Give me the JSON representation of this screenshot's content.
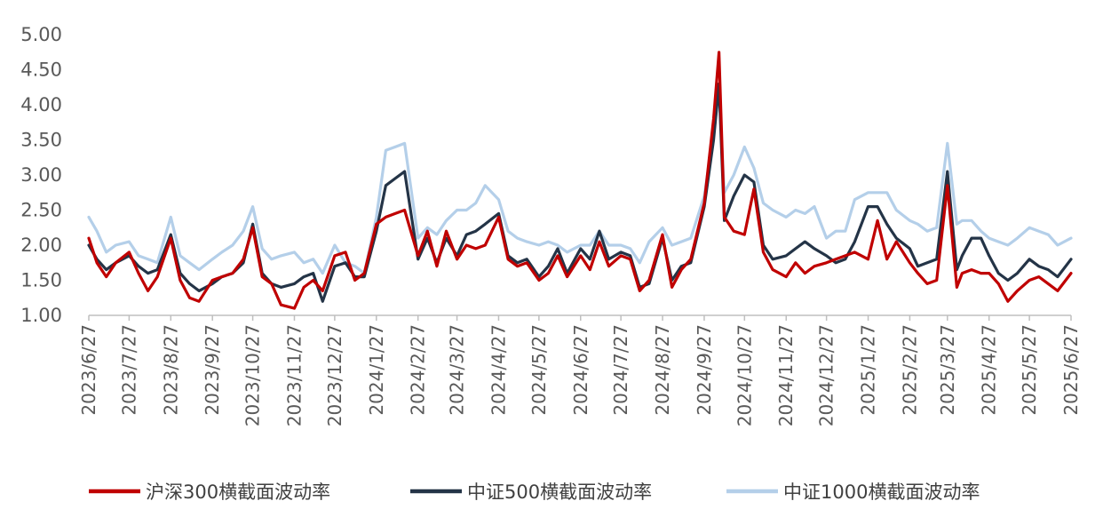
{
  "chart_data": {
    "type": "line",
    "title": "",
    "xlabel": "",
    "ylabel": "",
    "ylim": [
      1.0,
      5.0
    ],
    "y_ticks": [
      "1.00",
      "1.50",
      "2.00",
      "2.50",
      "3.00",
      "3.50",
      "4.00",
      "4.50",
      "5.00"
    ],
    "x_ticks": [
      "2023/6/27",
      "2023/7/27",
      "2023/8/27",
      "2023/9/27",
      "2023/10/27",
      "2023/11/27",
      "2023/12/27",
      "2024/1/27",
      "2024/2/27",
      "2024/3/27",
      "2024/4/27",
      "2024/5/27",
      "2024/6/27",
      "2024/7/27",
      "2024/8/27",
      "2024/9/27",
      "2024/10/27",
      "2024/11/27",
      "2024/12/27",
      "2025/1/27",
      "2025/2/27",
      "2025/3/27",
      "2025/4/27",
      "2025/5/27",
      "2025/6/27"
    ],
    "grid": false,
    "legend_position": "bottom",
    "series": [
      {
        "name": "沪深300横截面波动率",
        "color": "#c00000",
        "x": [
          "2023/6/27",
          "2023/7/3",
          "2023/7/10",
          "2023/7/17",
          "2023/7/27",
          "2023/8/3",
          "2023/8/10",
          "2023/8/17",
          "2023/8/27",
          "2023/9/3",
          "2023/9/10",
          "2023/9/17",
          "2023/9/27",
          "2023/10/4",
          "2023/10/12",
          "2023/10/20",
          "2023/10/27",
          "2023/11/3",
          "2023/11/10",
          "2023/11/17",
          "2023/11/27",
          "2023/12/4",
          "2023/12/11",
          "2023/12/18",
          "2023/12/27",
          "2024/1/4",
          "2024/1/11",
          "2024/1/18",
          "2024/1/27",
          "2024/2/3",
          "2024/2/10",
          "2024/2/17",
          "2024/2/27",
          "2024/3/5",
          "2024/3/12",
          "2024/3/19",
          "2024/3/27",
          "2024/4/3",
          "2024/4/10",
          "2024/4/17",
          "2024/4/27",
          "2024/5/4",
          "2024/5/11",
          "2024/5/18",
          "2024/5/27",
          "2024/6/3",
          "2024/6/10",
          "2024/6/17",
          "2024/6/27",
          "2024/7/4",
          "2024/7/11",
          "2024/7/18",
          "2024/7/27",
          "2024/8/3",
          "2024/8/10",
          "2024/8/17",
          "2024/8/27",
          "2024/9/3",
          "2024/9/10",
          "2024/9/17",
          "2024/9/27",
          "2024/10/4",
          "2024/10/8",
          "2024/10/12",
          "2024/10/19",
          "2024/10/27",
          "2024/11/3",
          "2024/11/10",
          "2024/11/17",
          "2024/11/27",
          "2024/12/4",
          "2024/12/11",
          "2024/12/18",
          "2024/12/27",
          "2025/1/3",
          "2025/1/10",
          "2025/1/17",
          "2025/1/27",
          "2025/2/3",
          "2025/2/10",
          "2025/2/17",
          "2025/2/27",
          "2025/3/5",
          "2025/3/12",
          "2025/3/19",
          "2025/3/27",
          "2025/4/3",
          "2025/4/7",
          "2025/4/14",
          "2025/4/21",
          "2025/4/27",
          "2025/5/4",
          "2025/5/11",
          "2025/5/18",
          "2025/5/27",
          "2025/6/3",
          "2025/6/10",
          "2025/6/17",
          "2025/6/27"
        ],
        "values": [
          2.1,
          1.75,
          1.55,
          1.75,
          1.9,
          1.6,
          1.35,
          1.55,
          2.1,
          1.5,
          1.25,
          1.2,
          1.5,
          1.55,
          1.6,
          1.8,
          2.25,
          1.55,
          1.45,
          1.15,
          1.1,
          1.4,
          1.5,
          1.35,
          1.85,
          1.9,
          1.5,
          1.6,
          2.3,
          2.4,
          2.45,
          2.5,
          1.85,
          2.2,
          1.7,
          2.2,
          1.8,
          2.0,
          1.95,
          2.0,
          2.4,
          1.8,
          1.7,
          1.75,
          1.5,
          1.6,
          1.85,
          1.55,
          1.85,
          1.65,
          2.05,
          1.7,
          1.85,
          1.8,
          1.35,
          1.5,
          2.15,
          1.4,
          1.65,
          1.8,
          2.6,
          3.8,
          4.75,
          2.4,
          2.2,
          2.15,
          2.8,
          1.9,
          1.65,
          1.55,
          1.75,
          1.6,
          1.7,
          1.75,
          1.8,
          1.85,
          1.9,
          1.8,
          2.35,
          1.8,
          2.05,
          1.75,
          1.6,
          1.45,
          1.5,
          2.85,
          1.4,
          1.6,
          1.65,
          1.6,
          1.6,
          1.45,
          1.2,
          1.35,
          1.5,
          1.55,
          1.45,
          1.35,
          1.6
        ]
      },
      {
        "name": "中证500横截面波动率",
        "color": "#243447",
        "x": [
          "2023/6/27",
          "2023/7/3",
          "2023/7/10",
          "2023/7/17",
          "2023/7/27",
          "2023/8/3",
          "2023/8/10",
          "2023/8/17",
          "2023/8/27",
          "2023/9/3",
          "2023/9/10",
          "2023/9/17",
          "2023/9/27",
          "2023/10/4",
          "2023/10/12",
          "2023/10/20",
          "2023/10/27",
          "2023/11/3",
          "2023/11/10",
          "2023/11/17",
          "2023/11/27",
          "2023/12/4",
          "2023/12/11",
          "2023/12/18",
          "2023/12/27",
          "2024/1/4",
          "2024/1/11",
          "2024/1/18",
          "2024/1/27",
          "2024/2/3",
          "2024/2/10",
          "2024/2/17",
          "2024/2/27",
          "2024/3/5",
          "2024/3/12",
          "2024/3/19",
          "2024/3/27",
          "2024/4/3",
          "2024/4/10",
          "2024/4/17",
          "2024/4/27",
          "2024/5/4",
          "2024/5/11",
          "2024/5/18",
          "2024/5/27",
          "2024/6/3",
          "2024/6/10",
          "2024/6/17",
          "2024/6/27",
          "2024/7/4",
          "2024/7/11",
          "2024/7/18",
          "2024/7/27",
          "2024/8/3",
          "2024/8/10",
          "2024/8/17",
          "2024/8/27",
          "2024/9/3",
          "2024/9/10",
          "2024/9/17",
          "2024/9/27",
          "2024/10/4",
          "2024/10/8",
          "2024/10/12",
          "2024/10/19",
          "2024/10/27",
          "2024/11/3",
          "2024/11/10",
          "2024/11/17",
          "2024/11/27",
          "2024/12/4",
          "2024/12/11",
          "2024/12/18",
          "2024/12/27",
          "2025/1/3",
          "2025/1/10",
          "2025/1/17",
          "2025/1/27",
          "2025/2/3",
          "2025/2/10",
          "2025/2/17",
          "2025/2/27",
          "2025/3/5",
          "2025/3/12",
          "2025/3/19",
          "2025/3/27",
          "2025/4/3",
          "2025/4/7",
          "2025/4/14",
          "2025/4/21",
          "2025/4/27",
          "2025/5/4",
          "2025/5/11",
          "2025/5/18",
          "2025/5/27",
          "2025/6/3",
          "2025/6/10",
          "2025/6/17",
          "2025/6/27"
        ],
        "values": [
          2.0,
          1.8,
          1.65,
          1.75,
          1.85,
          1.7,
          1.6,
          1.65,
          2.15,
          1.6,
          1.45,
          1.35,
          1.45,
          1.55,
          1.6,
          1.75,
          2.3,
          1.6,
          1.45,
          1.4,
          1.45,
          1.55,
          1.6,
          1.2,
          1.7,
          1.75,
          1.55,
          1.55,
          2.2,
          2.85,
          2.95,
          3.05,
          1.8,
          2.1,
          1.75,
          2.1,
          1.85,
          2.15,
          2.2,
          2.3,
          2.45,
          1.85,
          1.75,
          1.8,
          1.55,
          1.7,
          1.95,
          1.6,
          1.95,
          1.8,
          2.2,
          1.8,
          1.9,
          1.85,
          1.4,
          1.45,
          2.1,
          1.5,
          1.7,
          1.75,
          2.55,
          3.5,
          4.3,
          2.35,
          2.7,
          3.0,
          2.9,
          2.0,
          1.8,
          1.85,
          1.95,
          2.05,
          1.95,
          1.85,
          1.75,
          1.8,
          2.05,
          2.55,
          2.55,
          2.3,
          2.1,
          1.95,
          1.7,
          1.75,
          1.8,
          3.05,
          1.65,
          1.85,
          2.1,
          2.1,
          1.85,
          1.6,
          1.5,
          1.6,
          1.8,
          1.7,
          1.65,
          1.55,
          1.8
        ]
      },
      {
        "name": "中证1000横截面波动率",
        "color": "#b4cfe9",
        "x": [
          "2023/6/27",
          "2023/7/3",
          "2023/7/10",
          "2023/7/17",
          "2023/7/27",
          "2023/8/3",
          "2023/8/10",
          "2023/8/17",
          "2023/8/27",
          "2023/9/3",
          "2023/9/10",
          "2023/9/17",
          "2023/9/27",
          "2023/10/4",
          "2023/10/12",
          "2023/10/20",
          "2023/10/27",
          "2023/11/3",
          "2023/11/10",
          "2023/11/17",
          "2023/11/27",
          "2023/12/4",
          "2023/12/11",
          "2023/12/18",
          "2023/12/27",
          "2024/1/4",
          "2024/1/11",
          "2024/1/18",
          "2024/1/27",
          "2024/2/3",
          "2024/2/10",
          "2024/2/17",
          "2024/2/27",
          "2024/3/5",
          "2024/3/12",
          "2024/3/19",
          "2024/3/27",
          "2024/4/3",
          "2024/4/10",
          "2024/4/17",
          "2024/4/27",
          "2024/5/4",
          "2024/5/11",
          "2024/5/18",
          "2024/5/27",
          "2024/6/3",
          "2024/6/10",
          "2024/6/17",
          "2024/6/27",
          "2024/7/4",
          "2024/7/11",
          "2024/7/18",
          "2024/7/27",
          "2024/8/3",
          "2024/8/10",
          "2024/8/17",
          "2024/8/27",
          "2024/9/3",
          "2024/9/10",
          "2024/9/17",
          "2024/9/27",
          "2024/10/4",
          "2024/10/8",
          "2024/10/12",
          "2024/10/19",
          "2024/10/27",
          "2024/11/3",
          "2024/11/10",
          "2024/11/17",
          "2024/11/27",
          "2024/12/4",
          "2024/12/11",
          "2024/12/18",
          "2024/12/27",
          "2025/1/3",
          "2025/1/10",
          "2025/1/17",
          "2025/1/27",
          "2025/2/3",
          "2025/2/10",
          "2025/2/17",
          "2025/2/27",
          "2025/3/5",
          "2025/3/12",
          "2025/3/19",
          "2025/3/27",
          "2025/4/3",
          "2025/4/7",
          "2025/4/14",
          "2025/4/21",
          "2025/4/27",
          "2025/5/4",
          "2025/5/11",
          "2025/5/18",
          "2025/5/27",
          "2025/6/3",
          "2025/6/10",
          "2025/6/17",
          "2025/6/27"
        ],
        "values": [
          2.4,
          2.2,
          1.9,
          2.0,
          2.05,
          1.85,
          1.8,
          1.75,
          2.4,
          1.85,
          1.75,
          1.65,
          1.8,
          1.9,
          2.0,
          2.2,
          2.55,
          1.95,
          1.8,
          1.85,
          1.9,
          1.75,
          1.8,
          1.6,
          2.0,
          1.75,
          1.7,
          1.6,
          2.4,
          3.35,
          3.4,
          3.45,
          2.1,
          2.25,
          2.15,
          2.35,
          2.5,
          2.5,
          2.6,
          2.85,
          2.65,
          2.2,
          2.1,
          2.05,
          2.0,
          2.05,
          2.0,
          1.9,
          2.0,
          2.0,
          2.2,
          2.0,
          2.0,
          1.95,
          1.75,
          2.05,
          2.25,
          2.0,
          2.05,
          2.1,
          2.7,
          3.6,
          4.2,
          2.75,
          3.0,
          3.4,
          3.1,
          2.6,
          2.5,
          2.4,
          2.5,
          2.45,
          2.55,
          2.1,
          2.2,
          2.2,
          2.65,
          2.75,
          2.75,
          2.75,
          2.5,
          2.35,
          2.3,
          2.2,
          2.25,
          3.45,
          2.3,
          2.35,
          2.35,
          2.2,
          2.1,
          2.05,
          2.0,
          2.1,
          2.25,
          2.2,
          2.15,
          2.0,
          2.1
        ]
      }
    ]
  }
}
